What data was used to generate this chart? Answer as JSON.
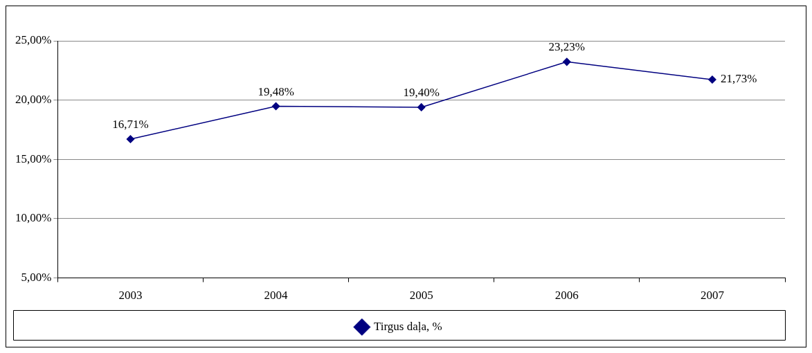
{
  "chart_data": {
    "type": "line",
    "categories": [
      "2003",
      "2004",
      "2005",
      "2006",
      "2007"
    ],
    "series": [
      {
        "name": "Tirgus daļa, %",
        "color": "#000080",
        "values": [
          16.71,
          19.48,
          19.4,
          23.23,
          21.73
        ],
        "value_labels": [
          "16,71%",
          "19,48%",
          "19,40%",
          "23,23%",
          "21,73%"
        ]
      }
    ],
    "ylim": [
      5,
      25
    ],
    "yticks": [
      {
        "value": 5,
        "label": "5,00%"
      },
      {
        "value": 10,
        "label": "10,00%"
      },
      {
        "value": 15,
        "label": "15,00%"
      },
      {
        "value": 20,
        "label": "20,00%"
      },
      {
        "value": 25,
        "label": "25,00%"
      }
    ],
    "grid": "y",
    "legend": "bottom",
    "marker": "diamond",
    "line_style": "solid"
  }
}
